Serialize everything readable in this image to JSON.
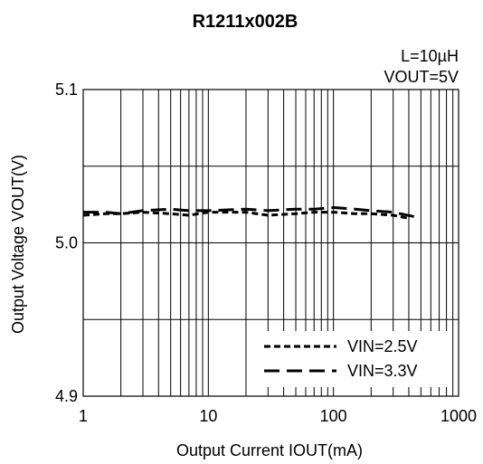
{
  "chart_data": {
    "type": "line",
    "title": "R1211x002B",
    "conditions": [
      "L=10µH",
      "VOUT=5V"
    ],
    "xlabel": "Output Current IOUT(mA)",
    "ylabel": "Output Voltage VOUT(V)",
    "x_scale": "log",
    "xlim": [
      1,
      1000
    ],
    "ylim": [
      4.9,
      5.1
    ],
    "x_ticks": [
      1,
      10,
      100,
      1000
    ],
    "x_tick_labels": [
      "1",
      "10",
      "100",
      "1000"
    ],
    "y_ticks": [
      4.9,
      5.0,
      5.1
    ],
    "y_tick_labels": [
      "4.9",
      "5.0",
      "5.1"
    ],
    "grid": true,
    "legend_position": "bottom-right",
    "series": [
      {
        "name": "VIN=2.5V",
        "style": "short-dash",
        "x": [
          1,
          1.5,
          2,
          3,
          5,
          7,
          10,
          20,
          30,
          50,
          70,
          100,
          150,
          200,
          300,
          400
        ],
        "y": [
          5.018,
          5.019,
          5.019,
          5.02,
          5.019,
          5.018,
          5.02,
          5.02,
          5.018,
          5.019,
          5.02,
          5.02,
          5.019,
          5.019,
          5.018,
          5.016
        ]
      },
      {
        "name": "VIN=3.3V",
        "style": "long-dash",
        "x": [
          1,
          1.5,
          2,
          3,
          5,
          7,
          10,
          20,
          30,
          50,
          70,
          100,
          150,
          200,
          300,
          450
        ],
        "y": [
          5.02,
          5.02,
          5.019,
          5.021,
          5.022,
          5.021,
          5.021,
          5.022,
          5.021,
          5.022,
          5.022,
          5.023,
          5.022,
          5.021,
          5.02,
          5.017
        ]
      }
    ]
  }
}
